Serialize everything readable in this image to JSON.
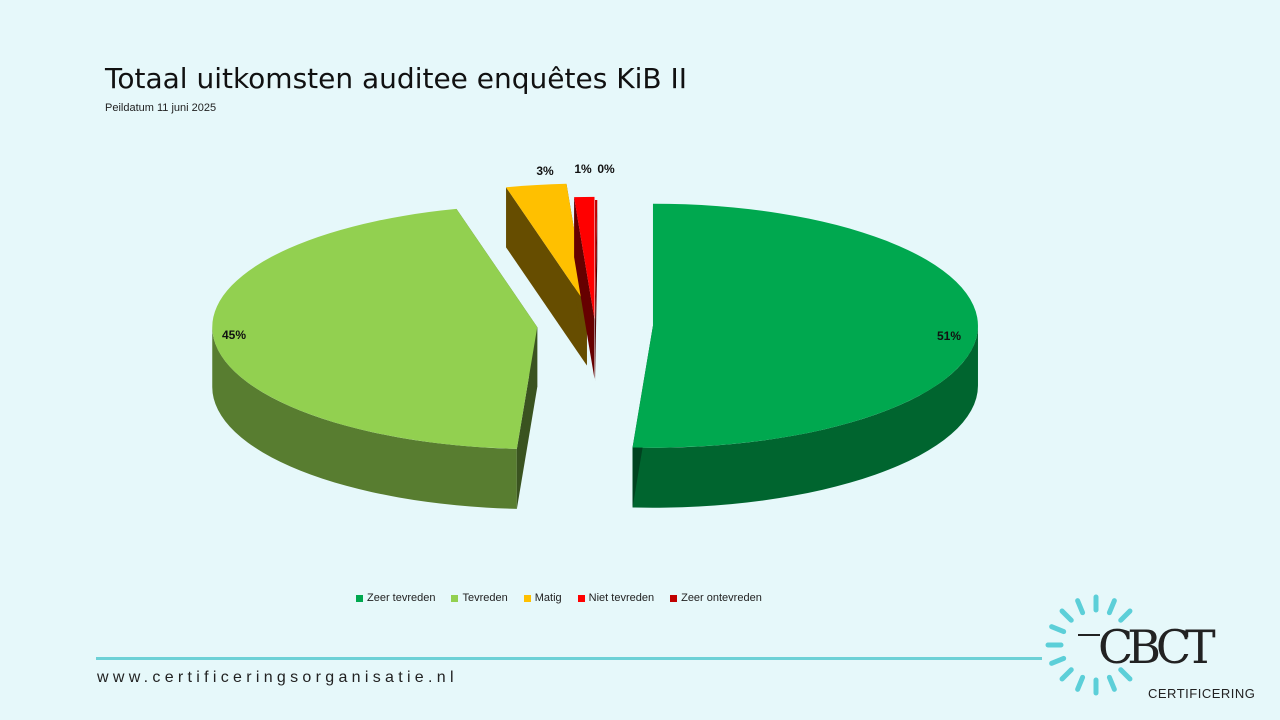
{
  "header": {
    "title": "Totaal uitkomsten auditee enquêtes KiB II",
    "subtitle": "Peildatum 11 juni 2025"
  },
  "chart_data": {
    "type": "pie",
    "categories": [
      "Zeer tevreden",
      "Tevreden",
      "Matig",
      "Niet tevreden",
      "Zeer ontevreden"
    ],
    "values": [
      51,
      45,
      3,
      1,
      0
    ],
    "data_labels": [
      "51%",
      "45%",
      "3%",
      "1%",
      "0%"
    ],
    "colors": [
      "#00a84f",
      "#92d050",
      "#ffc000",
      "#ff0000",
      "#c00000"
    ],
    "exploded": true,
    "style": "3d",
    "legend_position": "bottom"
  },
  "footer": {
    "url": "www.certificeringsorganisatie.nl",
    "accent_color": "#6dd1d6"
  },
  "logo": {
    "wordmark": "CBCT",
    "tagline": "CERTIFICERING"
  }
}
